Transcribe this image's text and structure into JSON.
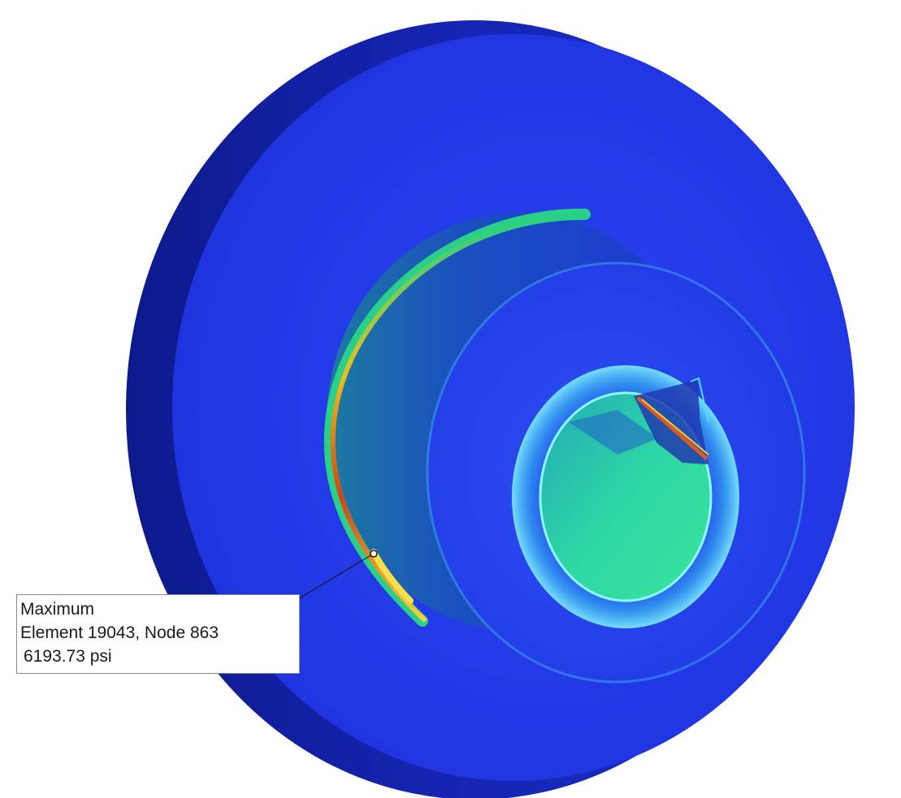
{
  "probe": {
    "title": "Maximum",
    "location": "Element 19043, Node 863",
    "value": "6193.73 psi"
  },
  "colors": {
    "background": "#ffffff",
    "stress_low": "#1f2fe0",
    "stress_mid": "#2fd2a0",
    "stress_high": "#f0c020",
    "stress_peak": "#d03010"
  }
}
